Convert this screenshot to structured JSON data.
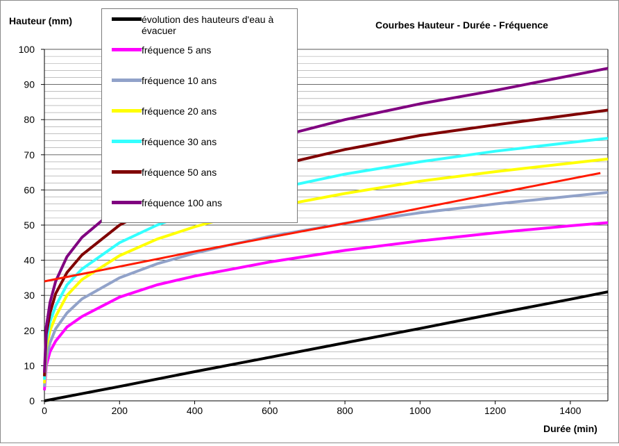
{
  "chart_data": {
    "type": "line",
    "title": "Courbes Hauteur - Durée - Fréquence",
    "ylabel": "Hauteur (mm)",
    "xlabel": "Durée (min)",
    "xlim": [
      0,
      1500
    ],
    "ylim": [
      0,
      100
    ],
    "xticks": [
      0,
      200,
      400,
      600,
      800,
      1000,
      1200,
      1400
    ],
    "yticks": [
      0,
      10,
      20,
      30,
      40,
      50,
      60,
      70,
      80,
      90,
      100
    ],
    "minor_grid_step": 2,
    "grid": true,
    "legend_position": "top-left",
    "series": [
      {
        "name": "évolution des hauteurs d'eau à évacuer",
        "color": "#000000",
        "x": [
          0,
          200,
          400,
          600,
          800,
          1000,
          1200,
          1400,
          1500
        ],
        "y": [
          0,
          4.1,
          8.3,
          12.4,
          16.5,
          20.6,
          24.8,
          28.9,
          31
        ]
      },
      {
        "name": "fréquence 5 ans",
        "color": "#ff00ff",
        "x": [
          0,
          5,
          15,
          30,
          60,
          100,
          200,
          300,
          400,
          500,
          600,
          800,
          1000,
          1200,
          1400,
          1500
        ],
        "y": [
          3,
          10,
          14,
          17,
          21,
          24,
          29.5,
          33,
          35.5,
          37.5,
          39.5,
          42.8,
          45.5,
          47.8,
          49.8,
          50.7
        ]
      },
      {
        "name": "fréquence 10 ans",
        "color": "#91a2c9",
        "x": [
          0,
          5,
          15,
          30,
          60,
          100,
          200,
          300,
          400,
          500,
          600,
          800,
          1000,
          1200,
          1400,
          1500
        ],
        "y": [
          4,
          12,
          16.5,
          20.5,
          25,
          29,
          35,
          39,
          42,
          44.5,
          46.8,
          50.5,
          53.5,
          56,
          58.2,
          59.3
        ]
      },
      {
        "name": "fréquence 20 ans",
        "color": "#ffff00",
        "x": [
          0,
          5,
          15,
          30,
          60,
          100,
          200,
          300,
          400,
          500,
          600,
          800,
          1000,
          1200,
          1400,
          1500
        ],
        "y": [
          5,
          15,
          20,
          24,
          30,
          34.5,
          41.3,
          46,
          49.5,
          52.5,
          55,
          59,
          62.5,
          65.2,
          67.6,
          68.8
        ]
      },
      {
        "name": "fréquence 30 ans",
        "color": "#33ffff",
        "x": [
          0,
          5,
          15,
          30,
          60,
          100,
          200,
          300,
          400,
          500,
          600,
          800,
          1000,
          1200,
          1400,
          1500
        ],
        "y": [
          6,
          17,
          22.5,
          27,
          33,
          37.5,
          45,
          50,
          54,
          57,
          60,
          64.5,
          68,
          71,
          73.5,
          74.7
        ]
      },
      {
        "name": "fréquence 50 ans",
        "color": "#800000",
        "x": [
          0,
          5,
          15,
          30,
          60,
          100,
          200,
          300,
          400,
          500,
          600,
          800,
          1000,
          1200,
          1400,
          1500
        ],
        "y": [
          7,
          19,
          25,
          30.5,
          36.5,
          41.5,
          50,
          55.5,
          60,
          63.5,
          66.5,
          71.5,
          75.5,
          78.5,
          81.3,
          82.7
        ]
      },
      {
        "name": "fréquence 100 ans",
        "color": "#800080",
        "x": [
          0,
          5,
          15,
          30,
          60,
          100,
          200,
          300,
          400,
          500,
          600,
          800,
          1000,
          1200,
          1400,
          1500
        ],
        "y": [
          8,
          21,
          28,
          34,
          41,
          46.5,
          55.5,
          62,
          67,
          71,
          74.5,
          80,
          84.5,
          88.3,
          92.5,
          94.6
        ]
      },
      {
        "color": "#ff1a00",
        "x": [
          0,
          200,
          400,
          600,
          800,
          1000,
          1200,
          1480
        ],
        "y": [
          34,
          38.2,
          42.5,
          46.5,
          50.5,
          54.8,
          59,
          64.8
        ]
      }
    ]
  }
}
